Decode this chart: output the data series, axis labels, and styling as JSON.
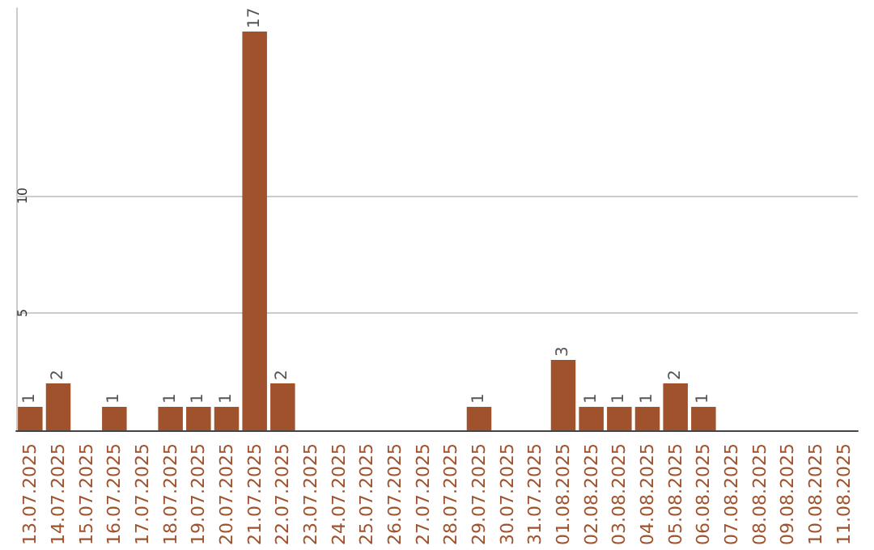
{
  "chart_data": {
    "type": "bar",
    "categories": [
      "13.07.2025",
      "14.07.2025",
      "15.07.2025",
      "16.07.2025",
      "17.07.2025",
      "18.07.2025",
      "19.07.2025",
      "20.07.2025",
      "21.07.2025",
      "22.07.2025",
      "23.07.2025",
      "24.07.2025",
      "25.07.2025",
      "26.07.2025",
      "27.07.2025",
      "28.07.2025",
      "29.07.2025",
      "30.07.2025",
      "31.07.2025",
      "01.08.2025",
      "02.08.2025",
      "03.08.2025",
      "04.08.2025",
      "05.08.2025",
      "06.08.2025",
      "07.08.2025",
      "08.08.2025",
      "09.08.2025",
      "10.08.2025",
      "11.08.2025"
    ],
    "values": [
      1,
      2,
      0,
      1,
      0,
      1,
      1,
      1,
      17,
      2,
      0,
      0,
      0,
      0,
      0,
      0,
      1,
      0,
      0,
      3,
      1,
      1,
      1,
      2,
      1,
      0,
      0,
      0,
      0,
      0
    ],
    "value_labels": [
      "1",
      "2",
      null,
      "1",
      null,
      "1",
      "1",
      "1",
      "17",
      "2",
      null,
      null,
      null,
      null,
      null,
      null,
      "1",
      null,
      null,
      "3",
      "1",
      "1",
      "1",
      "2",
      "1",
      null,
      null,
      null,
      null,
      null
    ],
    "color": "#a0522d",
    "ylim": [
      0,
      18
    ],
    "yticks": [
      5,
      10
    ],
    "grid": "y"
  }
}
